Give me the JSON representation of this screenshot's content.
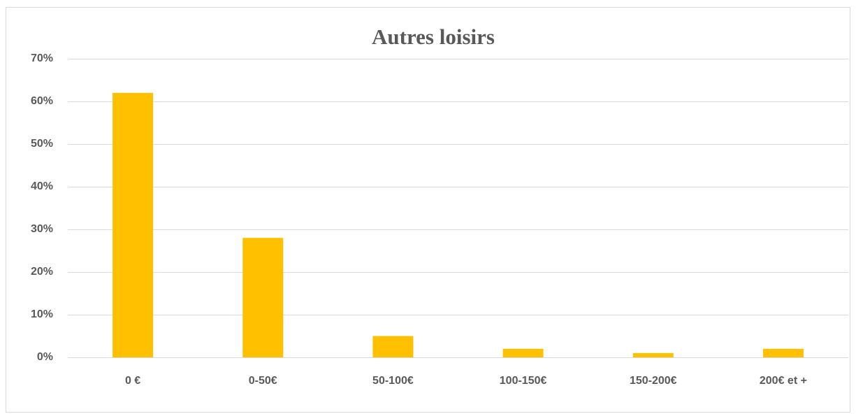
{
  "chart_data": {
    "type": "bar",
    "title": "Autres loisirs",
    "categories": [
      "0 €",
      "0-50€",
      "50-100€",
      "100-150€",
      "150-200€",
      "200€ et +"
    ],
    "values": [
      62,
      28,
      5,
      2,
      1,
      2
    ],
    "color": "#ffc000",
    "ylim": [
      0,
      70
    ],
    "yticks": [
      {
        "value": 0,
        "label": "0%"
      },
      {
        "value": 10,
        "label": "10%"
      },
      {
        "value": 20,
        "label": "20%"
      },
      {
        "value": 30,
        "label": "30%"
      },
      {
        "value": 40,
        "label": "40%"
      },
      {
        "value": 50,
        "label": "50%"
      },
      {
        "value": 60,
        "label": "60%"
      },
      {
        "value": 70,
        "label": "70%"
      }
    ],
    "grid": true
  }
}
